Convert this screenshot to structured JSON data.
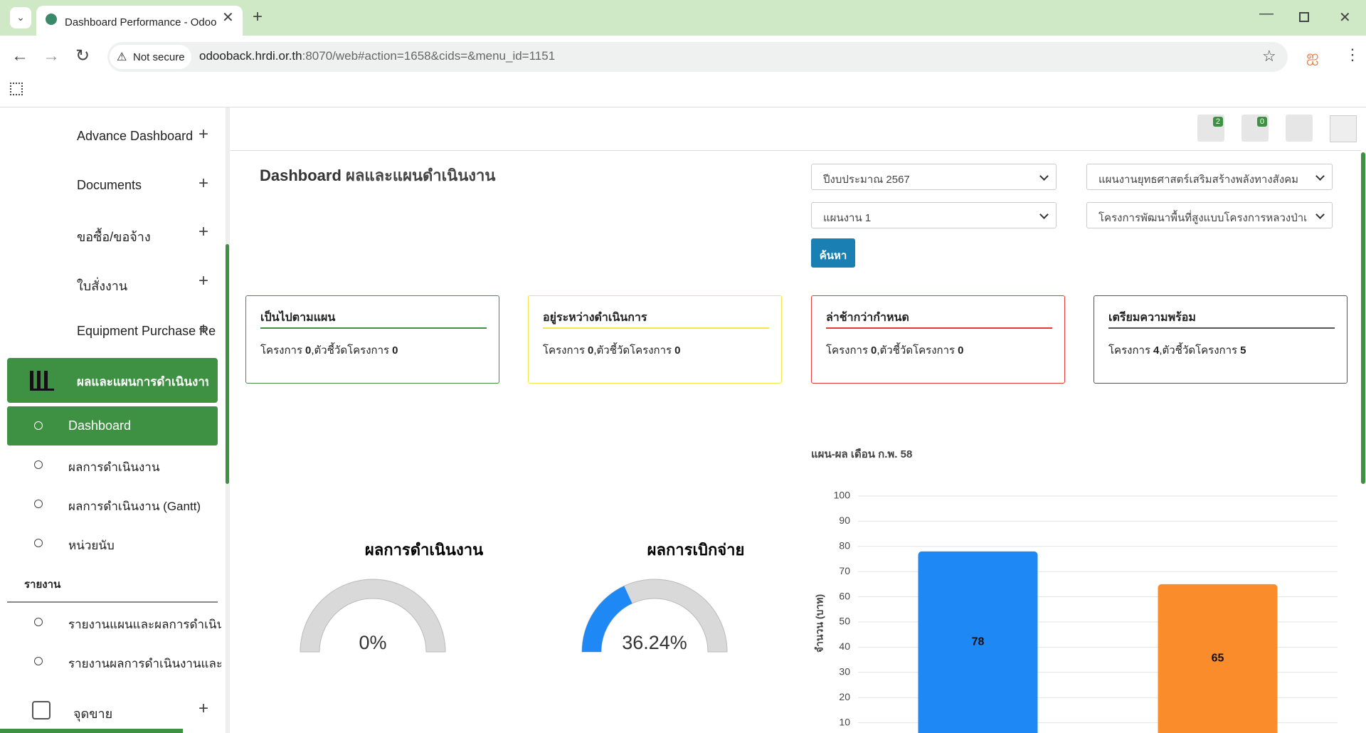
{
  "browser": {
    "tab_title": "Dashboard Performance - Odoo",
    "security": "Not secure",
    "url_host": "odooback.hrdi.or.th",
    "url_path": ":8070/web#action=1658&cids=&menu_id=1151"
  },
  "topbar": {
    "badges": [
      2,
      0
    ]
  },
  "sidebar": {
    "menu": [
      "Advance Dashboard",
      "Documents",
      "ขอซื้อ/ขอจ้าง",
      "ใบสั่งงาน",
      "Equipment Purchase Re"
    ],
    "active": "ผลและแผนการดำเนินงาน",
    "submenu": [
      "Dashboard",
      "ผลการดำเนินงาน",
      "ผลการดำเนินงาน (Gantt)",
      "หน่วยนับ"
    ],
    "section": "รายงาน",
    "reports": [
      "รายงานแผนและผลการดำเนิน",
      "รายงานผลการดำเนินงานและ"
    ],
    "last": "จุดขาย"
  },
  "header": {
    "title_bold": "Dashboard",
    "title_rest": "ผลและแผนดำเนินงาน"
  },
  "filters": [
    "ปีงบประมาณ 2567",
    "แผนงานยุทธศาสตร์เสริมสร้างพลังทางสังคม",
    "แผนงาน 1",
    "โครงการพัฒนาพื้นที่สูงแบบโครงการหลวงป่าเ"
  ],
  "search_button": "ค้นหา",
  "cards": [
    {
      "title": "เป็นไปตามแผน",
      "project_label": "โครงการ",
      "projects": 0,
      "indicator_label": ",ตัวชี้วัดโครงการ",
      "indicators": 0,
      "color": "#3e9142"
    },
    {
      "title": "อยู่ระหว่างดำเนินการ",
      "project_label": "โครงการ",
      "projects": 0,
      "indicator_label": ",ตัวชี้วัดโครงการ",
      "indicators": 0,
      "color": "#f2e64a"
    },
    {
      "title": "ล่าช้ากว่ากำหนด",
      "project_label": "โครงการ",
      "projects": 0,
      "indicator_label": ",ตัวชี้วัดโครงการ",
      "indicators": 0,
      "color": "#e53935"
    },
    {
      "title": "เตรียมความพร้อม",
      "project_label": "โครงการ",
      "projects": 4,
      "indicator_label": ",ตัวชี้วัดโครงการ",
      "indicators": 5,
      "color": "#555555"
    }
  ],
  "chart_data": [
    {
      "type": "gauge",
      "title": "ผลการดำเนินงาน",
      "values": [
        0
      ],
      "value_labels": [
        "0%"
      ],
      "ylim": [
        0,
        100
      ],
      "color": "#1e88f5"
    },
    {
      "type": "gauge",
      "title": "ผลการเบิกจ่าย",
      "values": [
        36.24
      ],
      "value_labels": [
        "36.24%"
      ],
      "ylim": [
        0,
        100
      ],
      "color": "#1e88f5"
    },
    {
      "type": "bar",
      "title": "แผน-ผล เดือน ก.พ. 58",
      "y_label": "จำนวน (บาท)",
      "categories": [
        null,
        null
      ],
      "values": [
        78,
        65
      ],
      "colors": [
        "#1e88f5",
        "#fb8c2c"
      ],
      "ylim": [
        0,
        100
      ],
      "yticks": [
        10,
        20,
        30,
        40,
        50,
        60,
        70,
        80,
        90,
        100
      ],
      "grid": true
    }
  ]
}
